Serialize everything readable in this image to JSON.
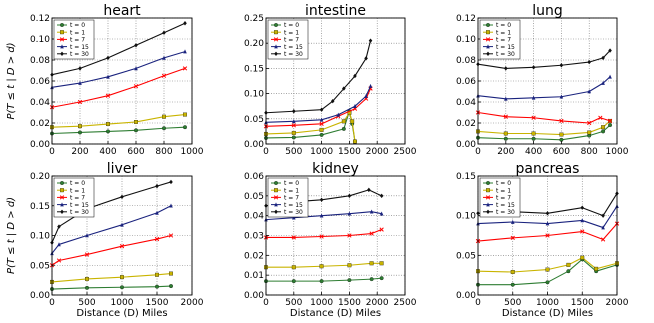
{
  "chart_data": [
    {
      "type": "line",
      "title": "heart",
      "ylabel": "P(T ≤ t | D > d)",
      "xlabel": "",
      "xlim": [
        0,
        1000
      ],
      "ylim": [
        0,
        0.12
      ],
      "xticks": [
        0,
        200,
        400,
        600,
        800,
        1000
      ],
      "yticks": [
        0.0,
        0.02,
        0.04,
        0.06,
        0.08,
        0.1,
        0.12
      ],
      "grid": true,
      "legend": "top-left",
      "series": [
        {
          "name": "t = 0",
          "color": "#2e7d32",
          "marker": "o",
          "x": [
            0,
            200,
            400,
            600,
            800,
            950
          ],
          "y": [
            0.01,
            0.011,
            0.012,
            0.013,
            0.015,
            0.016
          ]
        },
        {
          "name": "t = 1",
          "color": "#c9b400",
          "marker": "s",
          "x": [
            0,
            200,
            400,
            600,
            800,
            950
          ],
          "y": [
            0.016,
            0.017,
            0.019,
            0.021,
            0.026,
            0.028
          ]
        },
        {
          "name": "t = 7",
          "color": "#ff0000",
          "marker": "x",
          "x": [
            0,
            200,
            400,
            600,
            800,
            950
          ],
          "y": [
            0.035,
            0.04,
            0.046,
            0.055,
            0.065,
            0.072
          ]
        },
        {
          "name": "t = 15",
          "color": "#1a237e",
          "marker": "^",
          "x": [
            0,
            200,
            400,
            600,
            800,
            950
          ],
          "y": [
            0.054,
            0.058,
            0.064,
            0.072,
            0.082,
            0.088
          ]
        },
        {
          "name": "t = 30",
          "color": "#111111",
          "marker": "d",
          "x": [
            0,
            200,
            400,
            600,
            800,
            950
          ],
          "y": [
            0.066,
            0.072,
            0.082,
            0.094,
            0.106,
            0.115
          ]
        }
      ]
    },
    {
      "type": "line",
      "title": "intestine",
      "ylabel": "",
      "xlabel": "",
      "xlim": [
        0,
        2500
      ],
      "ylim": [
        0,
        0.25
      ],
      "xticks": [
        0,
        500,
        1000,
        1500,
        2000,
        2500
      ],
      "yticks": [
        0.0,
        0.05,
        0.1,
        0.15,
        0.2,
        0.25
      ],
      "grid": true,
      "legend": "top-left",
      "series": [
        {
          "name": "t = 0",
          "color": "#2e7d32",
          "marker": "o",
          "x": [
            0,
            500,
            1000,
            1400,
            1500,
            1550,
            1600
          ],
          "y": [
            0.012,
            0.013,
            0.018,
            0.03,
            0.065,
            0.04,
            0.005
          ]
        },
        {
          "name": "t = 1",
          "color": "#c9b400",
          "marker": "s",
          "x": [
            0,
            500,
            1000,
            1400,
            1500,
            1550,
            1600
          ],
          "y": [
            0.02,
            0.022,
            0.028,
            0.045,
            0.062,
            0.045,
            0.005
          ]
        },
        {
          "name": "t = 7",
          "color": "#ff0000",
          "marker": "x",
          "x": [
            0,
            500,
            1000,
            1300,
            1600,
            1800,
            1880
          ],
          "y": [
            0.035,
            0.037,
            0.04,
            0.055,
            0.07,
            0.09,
            0.11
          ]
        },
        {
          "name": "t = 15",
          "color": "#1a237e",
          "marker": "^",
          "x": [
            0,
            500,
            1000,
            1300,
            1600,
            1800,
            1880
          ],
          "y": [
            0.043,
            0.045,
            0.048,
            0.058,
            0.075,
            0.095,
            0.115
          ]
        },
        {
          "name": "t = 30",
          "color": "#111111",
          "marker": "d",
          "x": [
            0,
            500,
            1000,
            1200,
            1400,
            1600,
            1800,
            1880
          ],
          "y": [
            0.062,
            0.065,
            0.068,
            0.085,
            0.11,
            0.135,
            0.17,
            0.205
          ]
        }
      ]
    },
    {
      "type": "line",
      "title": "lung",
      "ylabel": "",
      "xlabel": "",
      "xlim": [
        0,
        1000
      ],
      "ylim": [
        0,
        0.12
      ],
      "xticks": [
        0,
        200,
        400,
        600,
        800,
        1000
      ],
      "yticks": [
        0.0,
        0.02,
        0.04,
        0.06,
        0.08,
        0.1,
        0.12
      ],
      "grid": true,
      "legend": "top-left",
      "series": [
        {
          "name": "t = 0",
          "color": "#2e7d32",
          "marker": "o",
          "x": [
            0,
            200,
            400,
            600,
            800,
            900,
            950
          ],
          "y": [
            0.006,
            0.005,
            0.005,
            0.004,
            0.008,
            0.012,
            0.018
          ]
        },
        {
          "name": "t = 1",
          "color": "#c9b400",
          "marker": "s",
          "x": [
            0,
            200,
            400,
            600,
            800,
            900,
            950
          ],
          "y": [
            0.012,
            0.01,
            0.01,
            0.009,
            0.011,
            0.016,
            0.022
          ]
        },
        {
          "name": "t = 7",
          "color": "#ff0000",
          "marker": "x",
          "x": [
            0,
            200,
            400,
            600,
            800,
            880,
            950
          ],
          "y": [
            0.03,
            0.026,
            0.025,
            0.022,
            0.02,
            0.025,
            0.022
          ]
        },
        {
          "name": "t = 15",
          "color": "#1a237e",
          "marker": "^",
          "x": [
            0,
            200,
            400,
            600,
            800,
            900,
            950
          ],
          "y": [
            0.046,
            0.043,
            0.044,
            0.045,
            0.05,
            0.058,
            0.064
          ]
        },
        {
          "name": "t = 30",
          "color": "#111111",
          "marker": "d",
          "x": [
            0,
            200,
            400,
            600,
            800,
            900,
            950
          ],
          "y": [
            0.076,
            0.072,
            0.073,
            0.075,
            0.078,
            0.082,
            0.089
          ]
        }
      ]
    },
    {
      "type": "line",
      "title": "liver",
      "ylabel": "P(T ≤ t | D > d)",
      "xlabel": "Distance (D) Miles",
      "xlim": [
        0,
        2000
      ],
      "ylim": [
        0,
        0.2
      ],
      "xticks": [
        0,
        500,
        1000,
        1500,
        2000
      ],
      "yticks": [
        0.0,
        0.05,
        0.1,
        0.15,
        0.2
      ],
      "grid": true,
      "legend": "top-left",
      "series": [
        {
          "name": "t = 0",
          "color": "#2e7d32",
          "marker": "o",
          "x": [
            0,
            500,
            1000,
            1500,
            1700
          ],
          "y": [
            0.01,
            0.012,
            0.013,
            0.014,
            0.015
          ]
        },
        {
          "name": "t = 1",
          "color": "#c9b400",
          "marker": "s",
          "x": [
            0,
            500,
            1000,
            1500,
            1700
          ],
          "y": [
            0.022,
            0.027,
            0.03,
            0.034,
            0.036
          ]
        },
        {
          "name": "t = 7",
          "color": "#ff0000",
          "marker": "x",
          "x": [
            0,
            100,
            500,
            1000,
            1500,
            1700
          ],
          "y": [
            0.05,
            0.058,
            0.068,
            0.082,
            0.094,
            0.1
          ]
        },
        {
          "name": "t = 15",
          "color": "#1a237e",
          "marker": "^",
          "x": [
            0,
            100,
            500,
            1000,
            1500,
            1700
          ],
          "y": [
            0.07,
            0.085,
            0.1,
            0.118,
            0.138,
            0.15
          ]
        },
        {
          "name": "t = 30",
          "color": "#111111",
          "marker": "d",
          "x": [
            0,
            100,
            500,
            1000,
            1500,
            1700
          ],
          "y": [
            0.088,
            0.115,
            0.145,
            0.165,
            0.183,
            0.19
          ]
        }
      ]
    },
    {
      "type": "line",
      "title": "kidney",
      "ylabel": "",
      "xlabel": "Distance (D) Miles",
      "xlim": [
        0,
        2500
      ],
      "ylim": [
        0,
        0.06
      ],
      "xticks": [
        0,
        500,
        1000,
        1500,
        2000,
        2500
      ],
      "yticks": [
        0.0,
        0.01,
        0.02,
        0.03,
        0.04,
        0.05,
        0.06
      ],
      "grid": true,
      "legend": "top-left",
      "series": [
        {
          "name": "t = 0",
          "color": "#2e7d32",
          "marker": "o",
          "x": [
            0,
            500,
            1000,
            1500,
            1900,
            2080
          ],
          "y": [
            0.007,
            0.007,
            0.007,
            0.0075,
            0.008,
            0.0085
          ]
        },
        {
          "name": "t = 1",
          "color": "#c9b400",
          "marker": "s",
          "x": [
            0,
            500,
            1000,
            1500,
            1900,
            2080
          ],
          "y": [
            0.014,
            0.014,
            0.0145,
            0.015,
            0.016,
            0.016
          ]
        },
        {
          "name": "t = 7",
          "color": "#ff0000",
          "marker": "x",
          "x": [
            0,
            500,
            1000,
            1500,
            1900,
            2080
          ],
          "y": [
            0.029,
            0.029,
            0.0295,
            0.03,
            0.031,
            0.033
          ]
        },
        {
          "name": "t = 15",
          "color": "#1a237e",
          "marker": "^",
          "x": [
            0,
            500,
            1000,
            1500,
            1900,
            2080
          ],
          "y": [
            0.038,
            0.039,
            0.04,
            0.041,
            0.042,
            0.041
          ]
        },
        {
          "name": "t = 30",
          "color": "#111111",
          "marker": "d",
          "x": [
            0,
            500,
            1000,
            1500,
            1850,
            2080
          ],
          "y": [
            0.045,
            0.047,
            0.048,
            0.05,
            0.053,
            0.05
          ]
        }
      ]
    },
    {
      "type": "line",
      "title": "pancreas",
      "ylabel": "",
      "xlabel": "Distance (D) Miles",
      "xlim": [
        0,
        2000
      ],
      "ylim": [
        0,
        0.15
      ],
      "xticks": [
        0,
        500,
        1000,
        1500,
        2000
      ],
      "yticks": [
        0.0,
        0.05,
        0.1,
        0.15
      ],
      "grid": true,
      "legend": "top-left",
      "series": [
        {
          "name": "t = 0",
          "color": "#2e7d32",
          "marker": "o",
          "x": [
            0,
            500,
            1000,
            1300,
            1500,
            1700,
            2000
          ],
          "y": [
            0.013,
            0.013,
            0.016,
            0.03,
            0.045,
            0.03,
            0.038
          ]
        },
        {
          "name": "t = 1",
          "color": "#c9b400",
          "marker": "s",
          "x": [
            0,
            500,
            1000,
            1300,
            1500,
            1700,
            2000
          ],
          "y": [
            0.03,
            0.029,
            0.032,
            0.038,
            0.047,
            0.033,
            0.04
          ]
        },
        {
          "name": "t = 7",
          "color": "#ff0000",
          "marker": "x",
          "x": [
            0,
            500,
            1000,
            1500,
            1800,
            2000
          ],
          "y": [
            0.068,
            0.072,
            0.075,
            0.08,
            0.07,
            0.09
          ]
        },
        {
          "name": "t = 15",
          "color": "#1a237e",
          "marker": "^",
          "x": [
            0,
            500,
            1000,
            1500,
            1800,
            2000
          ],
          "y": [
            0.09,
            0.092,
            0.09,
            0.094,
            0.085,
            0.112
          ]
        },
        {
          "name": "t = 30",
          "color": "#111111",
          "marker": "d",
          "x": [
            0,
            500,
            1000,
            1500,
            1800,
            2000
          ],
          "y": [
            0.103,
            0.105,
            0.103,
            0.11,
            0.1,
            0.128
          ]
        }
      ]
    }
  ]
}
